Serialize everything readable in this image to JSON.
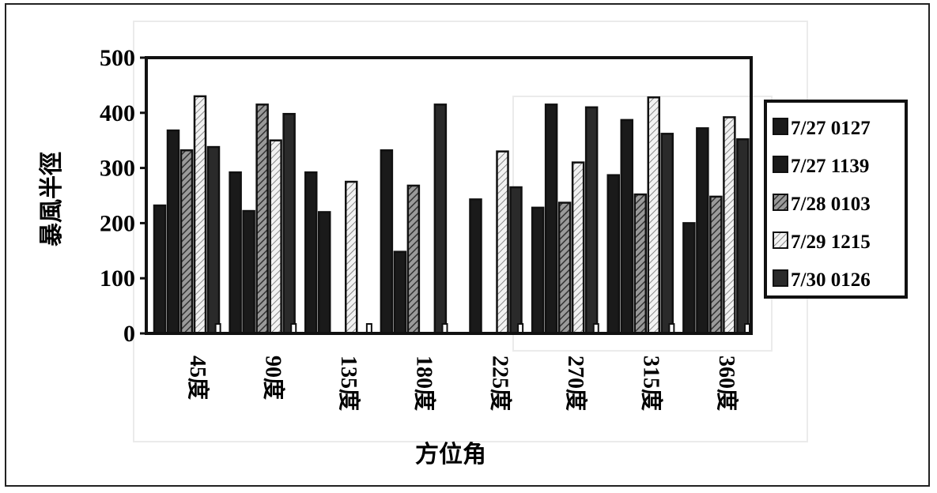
{
  "chart_data": {
    "type": "bar",
    "title": "",
    "xlabel": "方位角",
    "ylabel": "暴風半徑",
    "ylim": [
      0,
      500
    ],
    "yticks": [
      0,
      100,
      200,
      300,
      400,
      500
    ],
    "categories": [
      "45度",
      "90度",
      "135度",
      "180度",
      "225度",
      "270度",
      "315度",
      "360度"
    ],
    "series": [
      {
        "name": "7/27 0127",
        "color": "#1a1a1a",
        "pattern": "solid",
        "values": [
          232,
          292,
          292,
          332,
          0,
          228,
          287,
          200
        ]
      },
      {
        "name": "7/27 1139",
        "color": "#1a1a1a",
        "pattern": "solid",
        "values": [
          368,
          222,
          220,
          148,
          243,
          415,
          387,
          372
        ]
      },
      {
        "name": "7/28 0103",
        "color": "#555555",
        "pattern": "hatch",
        "values": [
          332,
          415,
          0,
          268,
          0,
          237,
          252,
          248
        ]
      },
      {
        "name": "7/29 1215",
        "color": "#ffffff",
        "pattern": "dotted",
        "values": [
          430,
          350,
          275,
          0,
          330,
          310,
          428,
          392
        ]
      },
      {
        "name": "7/30 0126",
        "color": "#2a2a2a",
        "pattern": "solid",
        "values": [
          338,
          398,
          0,
          415,
          265,
          410,
          362,
          352
        ]
      }
    ],
    "legend_position": "right",
    "grid": false
  }
}
